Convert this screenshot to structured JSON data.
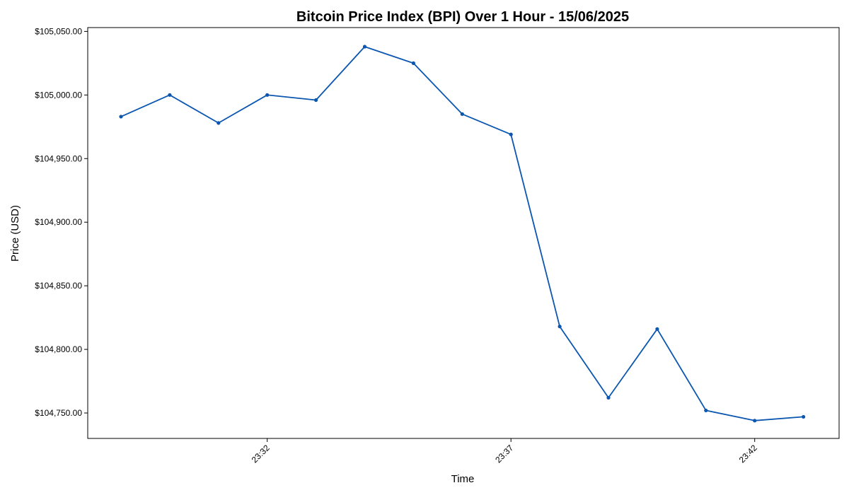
{
  "chart_data": {
    "type": "line",
    "title": "Bitcoin Price Index (BPI) Over 1 Hour - 15/06/2025",
    "xlabel": "Time",
    "ylabel": "Price (USD)",
    "x": [
      "23:29",
      "23:30",
      "23:31",
      "23:32",
      "23:33",
      "23:34",
      "23:35",
      "23:36",
      "23:37",
      "23:38",
      "23:39",
      "23:40",
      "23:41",
      "23:42",
      "23:43"
    ],
    "series": [
      {
        "values": [
          104983,
          105000,
          104978,
          105000,
          104996,
          105038,
          105025,
          104985,
          104969,
          104818,
          104762,
          104816,
          104752,
          104744,
          104747
        ],
        "color": "#0a56b0"
      }
    ],
    "x_ticks": [
      "23:32",
      "23:37",
      "23:42"
    ],
    "y_ticks": [
      "$104,750.00",
      "$104,800.00",
      "$104,850.00",
      "$104,900.00",
      "$104,950.00",
      "$105,000.00",
      "$105,050.00"
    ],
    "y_tick_values": [
      104750,
      104800,
      104850,
      104900,
      104950,
      105000,
      105050
    ],
    "ylim": [
      104730,
      105053
    ],
    "grid": false,
    "legend": "none"
  }
}
